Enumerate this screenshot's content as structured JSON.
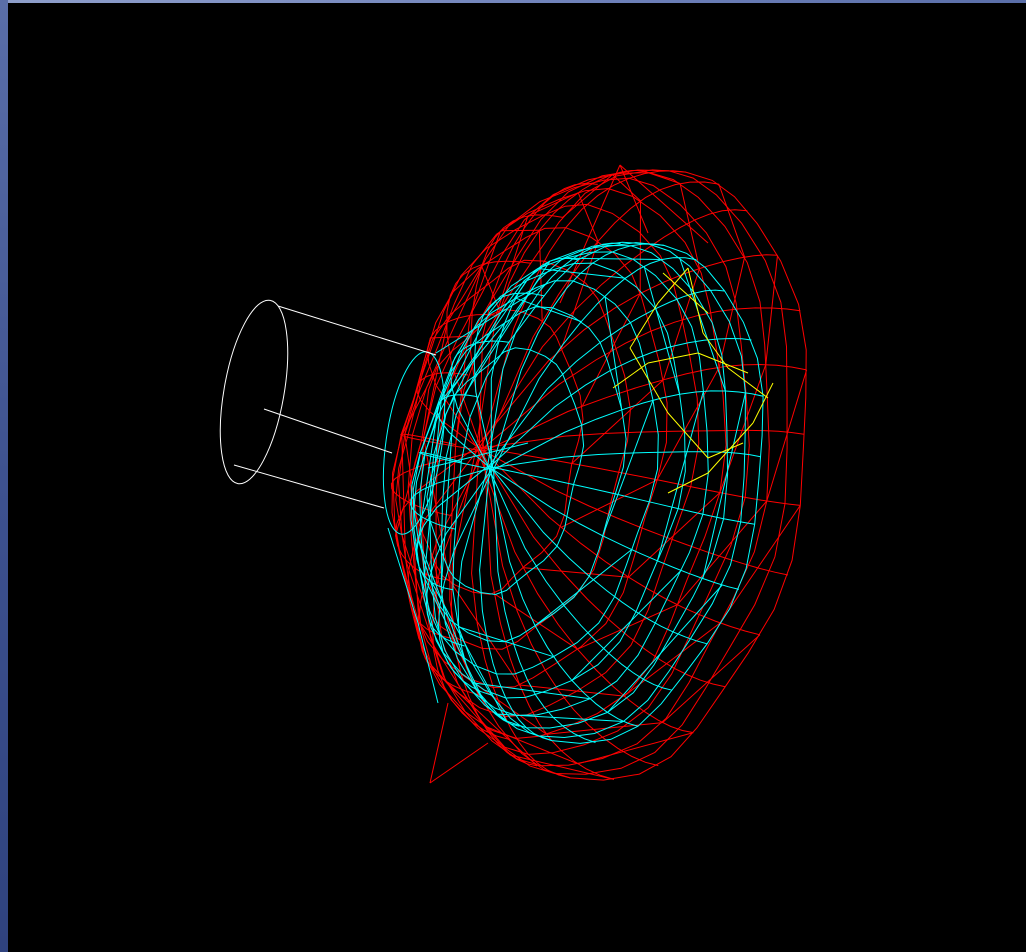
{
  "viewport": {
    "background": "#000000",
    "frame_color": "#3e5290"
  },
  "model": {
    "layers": [
      {
        "name": "outer-shell",
        "color": "#ff0000"
      },
      {
        "name": "inner-shell",
        "color": "#00ffff"
      },
      {
        "name": "spout",
        "color": "#ffffff"
      },
      {
        "name": "detail-lines",
        "color": "#ffff00"
      }
    ]
  }
}
